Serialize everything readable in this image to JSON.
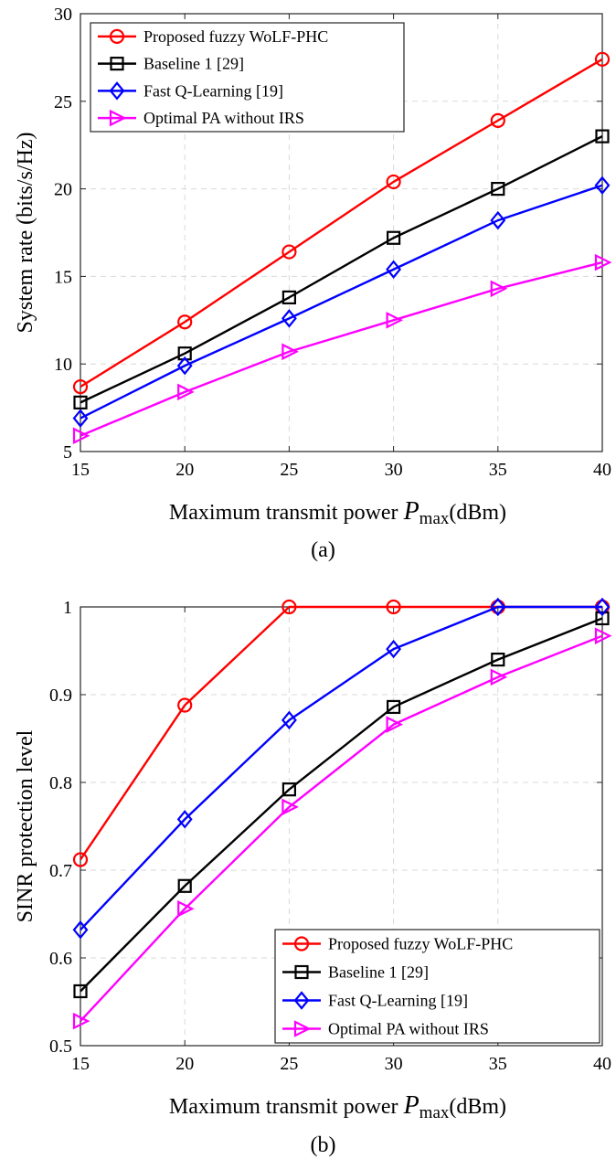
{
  "chart_data": [
    {
      "type": "line",
      "caption": "(a)",
      "xlabel_prefix": "Maximum transmit power ",
      "xlabel_var": "P",
      "xlabel_sub": "max",
      "xlabel_unit": "(dBm)",
      "ylabel": "System rate (bits/s/Hz)",
      "xlim": [
        15,
        40
      ],
      "ylim": [
        5,
        30
      ],
      "xticks": [
        15,
        20,
        25,
        30,
        35,
        40
      ],
      "yticks": [
        5,
        10,
        15,
        20,
        25,
        30
      ],
      "ytick_labels": [
        "5",
        "10",
        "15",
        "20",
        "25",
        "30"
      ],
      "grid": true,
      "legend_position": "top-left",
      "x": [
        15,
        20,
        25,
        30,
        35,
        40
      ],
      "series": [
        {
          "name": "Proposed fuzzy WoLF-PHC",
          "color": "#ff0000",
          "marker": "circle",
          "values": [
            8.7,
            12.4,
            16.4,
            20.4,
            23.9,
            27.4
          ]
        },
        {
          "name": "Baseline 1 [29]",
          "color": "#000000",
          "marker": "square",
          "values": [
            7.8,
            10.6,
            13.8,
            17.2,
            20.0,
            23.0
          ]
        },
        {
          "name": "Fast Q-Learning [19]",
          "color": "#0000ff",
          "marker": "diamond",
          "values": [
            6.9,
            9.9,
            12.6,
            15.4,
            18.2,
            20.2
          ]
        },
        {
          "name": "Optimal PA without IRS",
          "color": "#ff00ff",
          "marker": "triangle-right",
          "values": [
            5.9,
            8.4,
            10.7,
            12.5,
            14.3,
            15.8
          ]
        }
      ]
    },
    {
      "type": "line",
      "caption": "(b)",
      "xlabel_prefix": "Maximum transmit power ",
      "xlabel_var": "P",
      "xlabel_sub": "max",
      "xlabel_unit": "(dBm)",
      "ylabel": "SINR protection level",
      "xlim": [
        15,
        40
      ],
      "ylim": [
        0.5,
        1.0
      ],
      "xticks": [
        15,
        20,
        25,
        30,
        35,
        40
      ],
      "yticks": [
        0.5,
        0.6,
        0.7,
        0.8,
        0.9,
        1.0
      ],
      "ytick_labels": [
        "0.5",
        "0.6",
        "0.7",
        "0.8",
        "0.9",
        "1"
      ],
      "grid": true,
      "legend_position": "bottom-right",
      "x": [
        15,
        20,
        25,
        30,
        35,
        40
      ],
      "series": [
        {
          "name": "Proposed fuzzy WoLF-PHC",
          "color": "#ff0000",
          "marker": "circle",
          "values": [
            0.712,
            0.888,
            1.0,
            1.0,
            1.0,
            1.0
          ]
        },
        {
          "name": "Baseline 1 [29]",
          "color": "#000000",
          "marker": "square",
          "values": [
            0.562,
            0.682,
            0.792,
            0.886,
            0.94,
            0.987
          ]
        },
        {
          "name": "Fast Q-Learning [19]",
          "color": "#0000ff",
          "marker": "diamond",
          "values": [
            0.632,
            0.758,
            0.871,
            0.952,
            1.0,
            1.0
          ]
        },
        {
          "name": "Optimal PA without IRS",
          "color": "#ff00ff",
          "marker": "triangle-right",
          "values": [
            0.528,
            0.656,
            0.772,
            0.866,
            0.92,
            0.967
          ]
        }
      ]
    }
  ]
}
